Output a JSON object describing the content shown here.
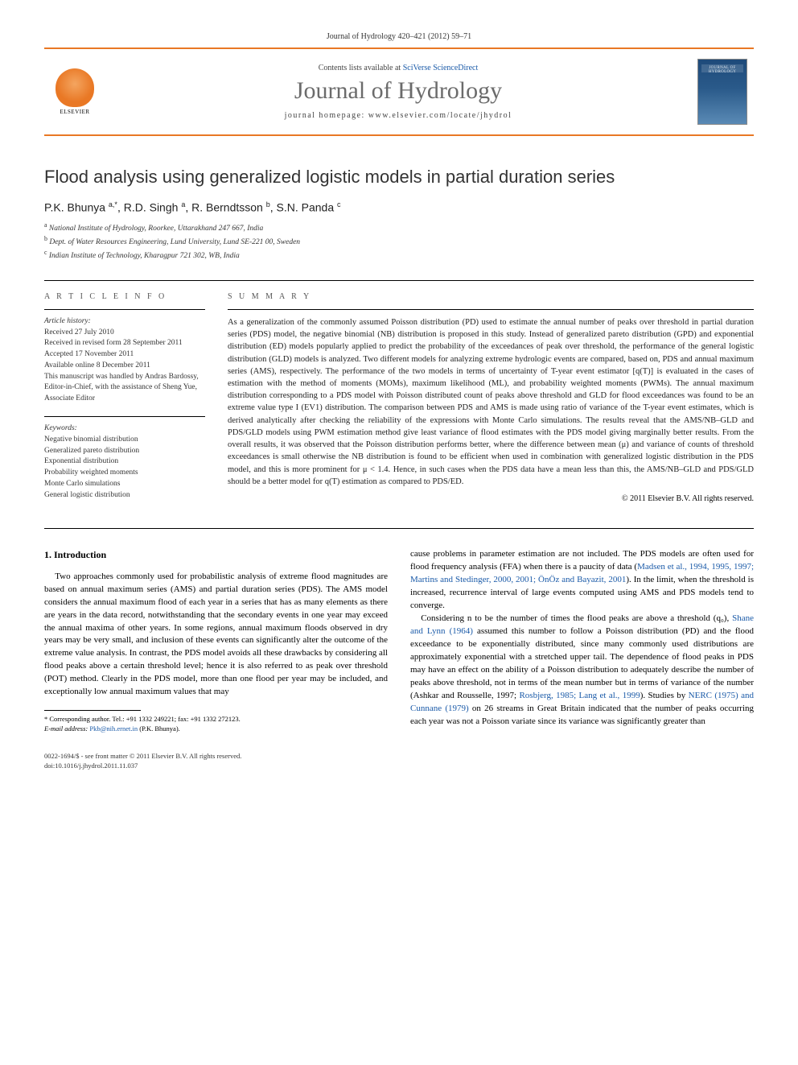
{
  "header": {
    "citation": "Journal of Hydrology 420–421 (2012) 59–71",
    "contents_prefix": "Contents lists available at ",
    "contents_link": "SciVerse ScienceDirect",
    "journal_name": "Journal of Hydrology",
    "homepage_prefix": "journal homepage: ",
    "homepage_url": "www.elsevier.com/locate/jhydrol",
    "publisher_name": "ELSEVIER",
    "cover_caption": "JOURNAL OF HYDROLOGY",
    "accent_color": "#e97825",
    "link_color": "#1a5aa8"
  },
  "article": {
    "title": "Flood analysis using generalized logistic models in partial duration series",
    "authors_html": "P.K. Bhunya <sup>a,*</sup>, R.D. Singh <sup>a</sup>, R. Berndtsson <sup>b</sup>, S.N. Panda <sup>c</sup>",
    "affiliations": [
      {
        "sup": "a",
        "text": "National Institute of Hydrology, Roorkee, Uttarakhand 247 667, India"
      },
      {
        "sup": "b",
        "text": "Dept. of Water Resources Engineering, Lund University, Lund SE-221 00, Sweden"
      },
      {
        "sup": "c",
        "text": "Indian Institute of Technology, Kharagpur 721 302, WB, India"
      }
    ]
  },
  "info": {
    "label": "A R T I C L E   I N F O",
    "history_label": "Article history:",
    "history": [
      "Received 27 July 2010",
      "Received in revised form 28 September 2011",
      "Accepted 17 November 2011",
      "Available online 8 December 2011",
      "This manuscript was handled by Andras Bardossy, Editor-in-Chief, with the assistance of Sheng Yue, Associate Editor"
    ],
    "keywords_label": "Keywords:",
    "keywords": [
      "Negative binomial distribution",
      "Generalized pareto distribution",
      "Exponential distribution",
      "Probability weighted moments",
      "Monte Carlo simulations",
      "General logistic distribution"
    ]
  },
  "summary": {
    "label": "S U M M A R Y",
    "text": "As a generalization of the commonly assumed Poisson distribution (PD) used to estimate the annual number of peaks over threshold in partial duration series (PDS) model, the negative binomial (NB) distribution is proposed in this study. Instead of generalized pareto distribution (GPD) and exponential distribution (ED) models popularly applied to predict the probability of the exceedances of peak over threshold, the performance of the general logistic distribution (GLD) models is analyzed. Two different models for analyzing extreme hydrologic events are compared, based on, PDS and annual maximum series (AMS), respectively. The performance of the two models in terms of uncertainty of T-year event estimator [q(T)] is evaluated in the cases of estimation with the method of moments (MOMs), maximum likelihood (ML), and probability weighted moments (PWMs). The annual maximum distribution corresponding to a PDS model with Poisson distributed count of peaks above threshold and GLD for flood exceedances was found to be an extreme value type I (EV1) distribution. The comparison between PDS and AMS is made using ratio of variance of the T-year event estimates, which is derived analytically after checking the reliability of the expressions with Monte Carlo simulations. The results reveal that the AMS/NB–GLD and PDS/GLD models using PWM estimation method give least variance of flood estimates with the PDS model giving marginally better results. From the overall results, it was observed that the Poisson distribution performs better, where the difference between mean (μ) and variance of counts of threshold exceedances is small otherwise the NB distribution is found to be efficient when used in combination with generalized logistic distribution in the PDS model, and this is more prominent for μ < 1.4. Hence, in such cases when the PDS data have a mean less than this, the AMS/NB–GLD and PDS/GLD should be a better model for q(T) estimation as compared to PDS/ED.",
    "copyright": "© 2011 Elsevier B.V. All rights reserved."
  },
  "body": {
    "heading": "1. Introduction",
    "col1_p1": "Two approaches commonly used for probabilistic analysis of extreme flood magnitudes are based on annual maximum series (AMS) and partial duration series (PDS). The AMS model considers the annual maximum flood of each year in a series that has as many elements as there are years in the data record, notwithstanding that the secondary events in one year may exceed the annual maxima of other years. In some regions, annual maximum floods observed in dry years may be very small, and inclusion of these events can significantly alter the outcome of the extreme value analysis. In contrast, the PDS model avoids all these drawbacks by considering all flood peaks above a certain threshold level; hence it is also referred to as peak over threshold (POT) method. Clearly in the PDS model, more than one flood per year may be included, and exceptionally low annual maximum values that may",
    "col2_p1_pre": "cause problems in parameter estimation are not included. The PDS models are often used for flood frequency analysis (FFA) when there is a paucity of data (",
    "col2_p1_link": "Madsen et al., 1994, 1995, 1997; Martins and Stedinger, 2000, 2001; ÖnÖz and Bayazit, 2001",
    "col2_p1_post": "). In the limit, when the threshold is increased, recurrence interval of large events computed using AMS and PDS models tend to converge.",
    "col2_p2_a": "Considering n to be the number of times the flood peaks are above a threshold (q₀), ",
    "col2_p2_link1": "Shane and Lynn (1964)",
    "col2_p2_b": " assumed this number to follow a Poisson distribution (PD) and the flood exceedance to be exponentially distributed, since many commonly used distributions are approximately exponential with a stretched upper tail. The dependence of flood peaks in PDS may have an effect on the ability of a Poisson distribution to adequately describe the number of peaks above threshold, not in terms of the mean number but in terms of variance of the number (Ashkar and Rousselle, 1997; ",
    "col2_p2_link2": "Rosbjerg, 1985; Lang et al., 1999",
    "col2_p2_c": "). Studies by ",
    "col2_p2_link3": "NERC (1975) and Cunnane (1979)",
    "col2_p2_d": " on 26 streams in Great Britain indicated that the number of peaks occurring each year was not a Poisson variate since its variance was significantly greater than",
    "footnote_corr": "* Corresponding author. Tel.: +91 1332 249221; fax: +91 1332 272123.",
    "footnote_email_label": "E-mail address: ",
    "footnote_email": "Pkb@nih.ernet.in",
    "footnote_email_suffix": " (P.K. Bhunya)."
  },
  "footer": {
    "line1": "0022-1694/$ - see front matter © 2011 Elsevier B.V. All rights reserved.",
    "line2": "doi:10.1016/j.jhydrol.2011.11.037"
  }
}
